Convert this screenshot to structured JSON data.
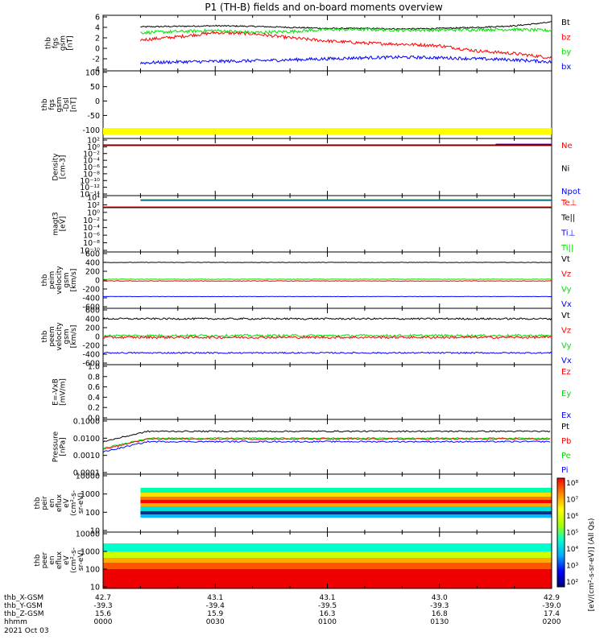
{
  "title": "P1 (TH-B) fields and on-board moments overview",
  "colors": {
    "black": "#000000",
    "red": "#ff0000",
    "green": "#00e000",
    "blue": "#0000ff",
    "yellow": "#ffff00"
  },
  "chart_data": [
    {
      "type": "line",
      "panel": "fgs_gsm",
      "ylabel_lines": [
        "thb",
        "fgs",
        "gsm",
        "[nT]"
      ],
      "yticks": [
        "6",
        "4",
        "2",
        "0",
        "-2",
        "-4"
      ],
      "ylim": [
        -4,
        6
      ],
      "legend": [
        {
          "name": "Bt",
          "color": "#000000"
        },
        {
          "name": "bz",
          "color": "#ff0000"
        },
        {
          "name": "by",
          "color": "#00e000"
        },
        {
          "name": "bx",
          "color": "#0000ff"
        }
      ],
      "x_minutes": [
        10,
        20,
        30,
        40,
        50,
        60,
        70,
        80,
        90,
        100,
        110,
        120
      ],
      "series": [
        {
          "name": "Bt",
          "values": [
            4.1,
            4.2,
            4.3,
            4.2,
            4.0,
            3.8,
            3.8,
            3.7,
            3.8,
            4.0,
            4.3,
            5.0
          ]
        },
        {
          "name": "bz",
          "values": [
            1.6,
            2.2,
            3.0,
            2.8,
            2.0,
            1.4,
            1.0,
            0.8,
            0.5,
            -0.5,
            -1.0,
            -1.8
          ]
        },
        {
          "name": "by",
          "values": [
            3.0,
            3.2,
            3.4,
            3.0,
            3.2,
            3.6,
            3.6,
            3.5,
            3.5,
            3.6,
            3.6,
            3.4
          ]
        },
        {
          "name": "bx",
          "values": [
            -2.8,
            -2.6,
            -2.5,
            -2.4,
            -2.2,
            -2.0,
            -1.8,
            -1.7,
            -1.8,
            -2.0,
            -2.2,
            -2.6
          ]
        }
      ]
    },
    {
      "type": "line",
      "panel": "fgs_gse",
      "ylabel_lines": [
        "thb",
        "fgs",
        "gsm",
        "-Dsl",
        "[nT]"
      ],
      "yticks": [
        "100",
        "50",
        "0",
        "-50",
        "-100"
      ],
      "ylim": [
        -130,
        105
      ],
      "legend": []
    },
    {
      "type": "line",
      "panel": "density",
      "ylabel_lines": [
        "Density",
        "[cm-3]"
      ],
      "yticks": [
        "10²",
        "10⁰",
        "10⁻²",
        "10⁻⁴",
        "10⁻⁶",
        "10⁻⁸",
        "10⁻¹⁰",
        "10⁻¹²",
        "10⁻¹⁴"
      ],
      "legend": [
        {
          "name": "Ne",
          "color": "#ff0000"
        },
        {
          "name": "Ni",
          "color": "#000000"
        },
        {
          "name": "Npot",
          "color": "#0000ff"
        }
      ]
    },
    {
      "type": "line",
      "panel": "temperature",
      "ylabel_lines": [
        "magt3",
        "[eV]"
      ],
      "yticks": [
        "10⁴",
        "10²",
        "10⁰",
        "10⁻²",
        "10⁻⁴",
        "10⁻⁶",
        "10⁻⁸",
        "10⁻¹⁰"
      ],
      "legend": [
        {
          "name": "Te⊥",
          "color": "#ff0000"
        },
        {
          "name": "Te||",
          "color": "#000000"
        },
        {
          "name": "Ti⊥",
          "color": "#0000ff"
        },
        {
          "name": "Ti||",
          "color": "#00e000"
        }
      ]
    },
    {
      "type": "line",
      "panel": "peim_velocity",
      "ylabel_lines": [
        "thb",
        "peim",
        "velocity",
        "gsm",
        "[km/s]"
      ],
      "yticks": [
        "600",
        "400",
        "200",
        "0",
        "-200",
        "-400",
        "-600"
      ],
      "ylim": [
        -600,
        600
      ],
      "legend": [
        {
          "name": "Vt",
          "color": "#000000"
        },
        {
          "name": "Vz",
          "color": "#ff0000"
        },
        {
          "name": "Vy",
          "color": "#00e000"
        },
        {
          "name": "Vx",
          "color": "#0000ff"
        }
      ]
    },
    {
      "type": "line",
      "panel": "peem_velocity",
      "ylabel_lines": [
        "thb",
        "peem",
        "velocity",
        "gsm",
        "[km/s]"
      ],
      "yticks": [
        "600",
        "400",
        "200",
        "0",
        "-200",
        "-400",
        "-600"
      ],
      "ylim": [
        -600,
        600
      ],
      "legend": [
        {
          "name": "Vt",
          "color": "#000000"
        },
        {
          "name": "Vz",
          "color": "#ff0000"
        },
        {
          "name": "Vy",
          "color": "#00e000"
        },
        {
          "name": "Vx",
          "color": "#0000ff"
        }
      ]
    },
    {
      "type": "line",
      "panel": "efield",
      "ylabel_lines": [
        "E=-VxB",
        "[mV/m]"
      ],
      "yticks": [
        "1.0",
        "0.8",
        "0.6",
        "0.4",
        "0.2",
        "0.0"
      ],
      "ylim": [
        0,
        1
      ],
      "legend": [
        {
          "name": "Ez",
          "color": "#ff0000"
        },
        {
          "name": "Ey",
          "color": "#00e000"
        },
        {
          "name": "Ex",
          "color": "#0000ff"
        }
      ]
    },
    {
      "type": "line",
      "panel": "pressure",
      "ylabel_lines": [
        "Pressure",
        "[nPa]"
      ],
      "yticks": [
        "0.1000",
        "0.0100",
        "0.0010",
        "0.0001"
      ],
      "legend": [
        {
          "name": "Pt",
          "color": "#000000"
        },
        {
          "name": "Pb",
          "color": "#ff0000"
        },
        {
          "name": "Pe",
          "color": "#00e000"
        },
        {
          "name": "Pi",
          "color": "#0000ff"
        }
      ]
    },
    {
      "type": "heatmap",
      "panel": "peir",
      "ylabel_lines": [
        "thb",
        "peir",
        "en",
        "eflux",
        "eV",
        "(cm²-s-",
        "sr-eV)"
      ],
      "yticks": [
        "10000",
        "1000",
        "100",
        "10"
      ]
    },
    {
      "type": "heatmap",
      "panel": "peer",
      "ylabel_lines": [
        "thb",
        "peer",
        "en",
        "eflux",
        "eV",
        "(cm²-s-",
        "sr-eV)"
      ],
      "yticks": [
        "10000",
        "1000",
        "100",
        "10"
      ]
    }
  ],
  "colorbar": {
    "label": "[eV/(cm²-s-sr-eV)] (All Qs)",
    "ticks": [
      "10⁸",
      "10⁷",
      "10⁶",
      "10⁵",
      "10⁴",
      "10³",
      "10²"
    ]
  },
  "xaxis": {
    "row_labels": [
      "thb_X-GSM",
      "thb_Y-GSM",
      "thb_Z-GSM",
      "hhmm",
      "2021 Oct 03"
    ],
    "columns": [
      {
        "x": "42.7",
        "y": "-39.3",
        "z": "15.6",
        "t": "0000"
      },
      {
        "x": "43.1",
        "y": "-39.4",
        "z": "15.9",
        "t": "0030"
      },
      {
        "x": "43.1",
        "y": "-39.5",
        "z": "16.3",
        "t": "0100"
      },
      {
        "x": "43.0",
        "y": "-39.3",
        "z": "16.8",
        "t": "0130"
      },
      {
        "x": "42.9",
        "y": "-39.0",
        "z": "17.4",
        "t": "0200"
      }
    ]
  }
}
